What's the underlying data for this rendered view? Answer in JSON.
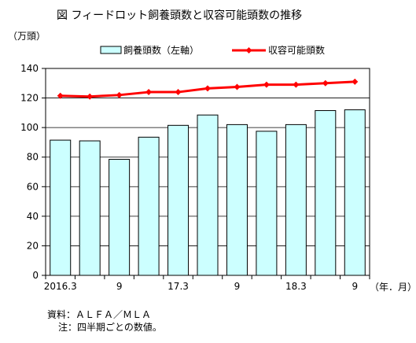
{
  "chart_data": {
    "type": "bar+line",
    "title": "図 フィードロット飼養頭数と収容可能頭数の推移",
    "y_unit_label": "（万頭）",
    "x_unit_label": "（年．月）",
    "categories": [
      "2016.3",
      "",
      "9",
      "",
      "17.3",
      "",
      "9",
      "",
      "18.3",
      "",
      "9"
    ],
    "ylim": [
      0,
      140
    ],
    "y_ticks": [
      0,
      20,
      40,
      60,
      80,
      100,
      120,
      140
    ],
    "grid": true,
    "legend_placement": "top",
    "series": [
      {
        "name": "飼養頭数（左軸）",
        "kind": "bar",
        "color": "#ccffff",
        "values": [
          91.5,
          91,
          78.5,
          93.5,
          101.5,
          108.5,
          102,
          97.5,
          102,
          111.5,
          112
        ]
      },
      {
        "name": "収容可能頭数",
        "kind": "line",
        "color": "#ff0000",
        "values": [
          121.5,
          121,
          122,
          124,
          124,
          126.5,
          127.5,
          129,
          129,
          130,
          131
        ]
      }
    ]
  },
  "notes": {
    "source": "資料：ＡＬＦＡ／ＭＬＡ",
    "note": "注：四半期ごとの数値。"
  }
}
